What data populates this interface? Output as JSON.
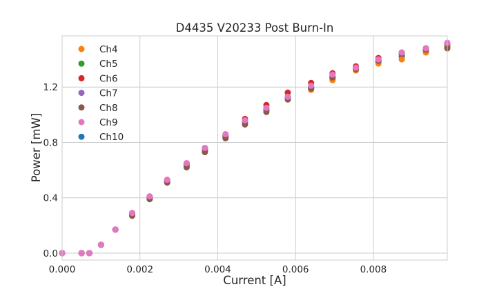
{
  "chart_data": {
    "type": "scatter",
    "title": "D4435 V20233 Post Burn-In",
    "xlabel": "Current [A]",
    "ylabel": "Power [mW]",
    "xlim": [
      0.0,
      0.0099
    ],
    "ylim": [
      -0.05,
      1.57
    ],
    "xticks": [
      0.0,
      0.002,
      0.004,
      0.006,
      0.008
    ],
    "xtick_labels": [
      "0.000",
      "0.002",
      "0.004",
      "0.006",
      "0.008"
    ],
    "yticks": [
      0.0,
      0.4,
      0.8,
      1.2
    ],
    "ytick_labels": [
      "0.0",
      "0.4",
      "0.8",
      "1.2"
    ],
    "grid": true,
    "legend_position": "top-left",
    "x": [
      0.0,
      0.0005,
      0.0007,
      0.001,
      0.00137,
      0.0018,
      0.00225,
      0.0027,
      0.0032,
      0.00367,
      0.0042,
      0.0047,
      0.00525,
      0.0058,
      0.0064,
      0.00695,
      0.00755,
      0.00813,
      0.00873,
      0.00935,
      0.0099
    ],
    "series": [
      {
        "name": "Ch10",
        "color": "#1f77b4",
        "values": [
          0.0,
          0.0,
          0.0,
          0.06,
          0.17,
          0.28,
          0.4,
          0.52,
          0.63,
          0.74,
          0.84,
          0.94,
          1.03,
          1.12,
          1.19,
          1.26,
          1.33,
          1.38,
          1.42,
          1.46,
          1.49
        ]
      },
      {
        "name": "Ch4",
        "color": "#ff7f0e",
        "values": [
          0.0,
          0.0,
          0.0,
          0.06,
          0.17,
          0.28,
          0.4,
          0.52,
          0.63,
          0.74,
          0.84,
          0.94,
          1.03,
          1.12,
          1.18,
          1.25,
          1.32,
          1.37,
          1.4,
          1.45,
          1.49
        ]
      },
      {
        "name": "Ch5",
        "color": "#2ca02c",
        "values": [
          0.0,
          0.0,
          0.0,
          0.06,
          0.17,
          0.28,
          0.4,
          0.52,
          0.64,
          0.75,
          0.84,
          0.95,
          1.04,
          1.13,
          1.2,
          1.27,
          1.34,
          1.39,
          1.44,
          1.47,
          1.5
        ]
      },
      {
        "name": "Ch6",
        "color": "#d62728",
        "values": [
          0.0,
          0.0,
          0.0,
          0.06,
          0.17,
          0.29,
          0.41,
          0.53,
          0.65,
          0.76,
          0.85,
          0.97,
          1.07,
          1.16,
          1.23,
          1.3,
          1.35,
          1.41,
          1.45,
          1.48,
          1.51
        ]
      },
      {
        "name": "Ch7",
        "color": "#9467bd",
        "values": [
          0.0,
          0.0,
          0.0,
          0.06,
          0.17,
          0.28,
          0.4,
          0.52,
          0.64,
          0.75,
          0.85,
          0.95,
          1.04,
          1.12,
          1.2,
          1.28,
          1.34,
          1.39,
          1.45,
          1.48,
          1.51
        ]
      },
      {
        "name": "Ch8",
        "color": "#8c564b",
        "values": [
          0.0,
          0.0,
          0.0,
          0.06,
          0.17,
          0.27,
          0.39,
          0.51,
          0.62,
          0.73,
          0.83,
          0.93,
          1.02,
          1.11,
          1.19,
          1.27,
          1.33,
          1.39,
          1.44,
          1.47,
          1.48
        ]
      },
      {
        "name": "Ch9",
        "color": "#e377c2",
        "values": [
          0.0,
          0.0,
          0.0,
          0.06,
          0.17,
          0.29,
          0.41,
          0.53,
          0.65,
          0.76,
          0.86,
          0.96,
          1.05,
          1.13,
          1.21,
          1.29,
          1.34,
          1.4,
          1.45,
          1.48,
          1.52
        ]
      }
    ],
    "legend_order": [
      "Ch4",
      "Ch5",
      "Ch6",
      "Ch7",
      "Ch8",
      "Ch9",
      "Ch10"
    ]
  }
}
